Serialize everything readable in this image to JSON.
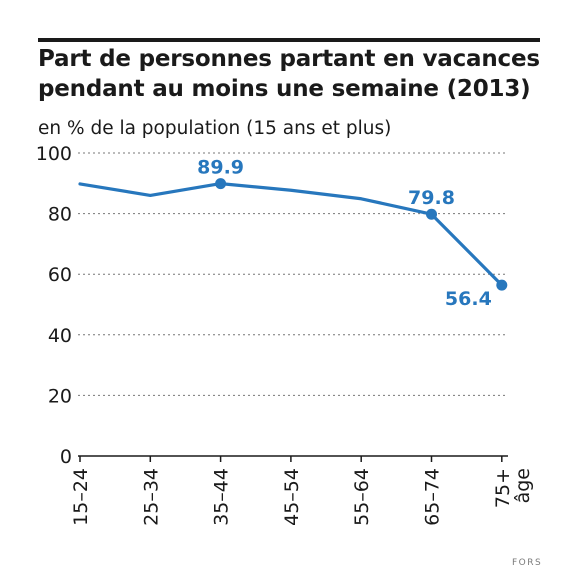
{
  "chart_data": {
    "type": "line",
    "title": [
      "Part de personnes partant en vacances",
      "pendant au moins une semaine (2013)"
    ],
    "subtitle": "en % de la population (15 ans et plus)",
    "xlabel": "âge",
    "categories": [
      "15–24",
      "25–34",
      "35–44",
      "45–54",
      "55–64",
      "65–74",
      "75+"
    ],
    "series": [
      {
        "values": [
          89.8,
          86.0,
          89.9,
          87.7,
          84.9,
          79.8,
          56.4
        ]
      }
    ],
    "data_labels": [
      {
        "index": 2,
        "text": "89.9",
        "position": "above"
      },
      {
        "index": 5,
        "text": "79.8",
        "position": "above"
      },
      {
        "index": 6,
        "text": "56.4",
        "position": "left"
      }
    ],
    "markers": [
      2,
      5,
      6
    ],
    "ylim": [
      0,
      100
    ],
    "yticks": [
      0,
      20,
      40,
      60,
      80,
      100
    ],
    "grid": true,
    "colors": {
      "line": "#2777bd",
      "axis": "#1a1a1a",
      "grid": "#777777"
    }
  },
  "source": "FORS"
}
